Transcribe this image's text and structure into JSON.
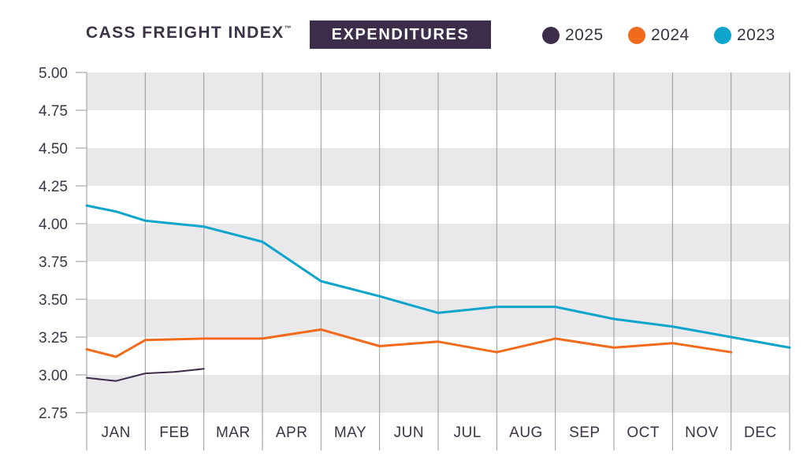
{
  "header": {
    "title": "CASS FREIGHT INDEX",
    "title_mark": "™",
    "badge": "EXPENDITURES"
  },
  "colors": {
    "2025": "#3c2e4b",
    "2024": "#f26a1b",
    "2023": "#0ea5cc",
    "band": "#e9e8ea",
    "grid": "#9a96a0",
    "text": "#3d3347"
  },
  "chart_data": {
    "type": "line",
    "categories": [
      "JAN",
      "FEB",
      "MAR",
      "APR",
      "MAY",
      "JUN",
      "JUL",
      "AUG",
      "SEP",
      "OCT",
      "NOV",
      "DEC"
    ],
    "ylim": [
      2.75,
      5.0
    ],
    "yticks": [
      "5.00",
      "4.75",
      "4.50",
      "4.25",
      "4.00",
      "3.75",
      "3.50",
      "3.25",
      "3.00",
      "2.75"
    ],
    "grid": "horizontal bands, vertical lines",
    "legend": "top-right",
    "series": [
      {
        "name": "2025",
        "color": "#3c2e4b",
        "x": [
          0,
          0.5,
          1.0,
          1.5,
          2.0
        ],
        "values": [
          2.98,
          2.96,
          3.01,
          3.02,
          3.04
        ]
      },
      {
        "name": "2024",
        "color": "#f26a1b",
        "x": [
          0,
          0.5,
          1.0,
          2.0,
          3.0,
          4.0,
          5.0,
          6.0,
          7.0,
          8.0,
          9.0,
          10.0,
          11.0
        ],
        "values": [
          3.17,
          3.12,
          3.23,
          3.24,
          3.24,
          3.3,
          3.19,
          3.22,
          3.15,
          3.24,
          3.18,
          3.21,
          3.15
        ]
      },
      {
        "name": "2023",
        "color": "#0ea5cc",
        "x": [
          0,
          0.5,
          1.0,
          2.0,
          3.0,
          4.0,
          5.0,
          6.0,
          7.0,
          8.0,
          9.0,
          10.0,
          11.0,
          12.0
        ],
        "values": [
          4.12,
          4.08,
          4.02,
          3.98,
          3.88,
          3.62,
          3.52,
          3.41,
          3.45,
          3.45,
          3.37,
          3.32,
          3.25,
          3.18
        ]
      }
    ]
  }
}
